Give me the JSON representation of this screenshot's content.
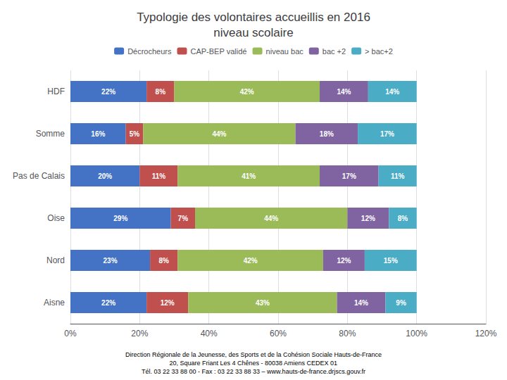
{
  "chart_data": {
    "type": "bar",
    "orientation": "horizontal",
    "stacked": true,
    "title": "Typologie des volontaires accueillis en 2016\nniveau scolaire",
    "categories": [
      "HDF",
      "Somme",
      "Pas de Calais",
      "Oise",
      "Nord",
      "Aisne"
    ],
    "series": [
      {
        "name": "Décrocheurs",
        "color": "#4472C4",
        "values": [
          22,
          16,
          20,
          29,
          23,
          22
        ],
        "value_labels": [
          "22%",
          "16%",
          "20%",
          "29%",
          "23%",
          "22%"
        ]
      },
      {
        "name": "CAP-BEP validé",
        "color": "#C0504D",
        "values": [
          8,
          5,
          11,
          7,
          8,
          12
        ],
        "value_labels": [
          "8%",
          "5%",
          "11%",
          "7%",
          "8%",
          "12%"
        ]
      },
      {
        "name": "niveau bac",
        "color": "#9BBB59",
        "values": [
          42,
          44,
          41,
          44,
          42,
          43
        ],
        "value_labels": [
          "42%",
          "44%",
          "41%",
          "44%",
          "42%",
          "43%"
        ]
      },
      {
        "name": "bac +2",
        "color": "#8064A2",
        "values": [
          14,
          18,
          17,
          12,
          12,
          14
        ],
        "value_labels": [
          "14%",
          "18%",
          "17%",
          "12%",
          "12%",
          "14%"
        ]
      },
      {
        "name": "> bac+2",
        "color": "#4BACC6",
        "values": [
          14,
          17,
          11,
          8,
          15,
          9
        ],
        "value_labels": [
          "14%",
          "17%",
          "11%",
          "8%",
          "15%",
          "9%"
        ]
      }
    ],
    "xlim": [
      0,
      120
    ],
    "xticks": [
      {
        "value": 0,
        "label": "0%"
      },
      {
        "value": 20,
        "label": "20%"
      },
      {
        "value": 40,
        "label": "40%"
      },
      {
        "value": 60,
        "label": "60%"
      },
      {
        "value": 80,
        "label": "80%"
      },
      {
        "value": 100,
        "label": "100%"
      },
      {
        "value": 120,
        "label": "120%"
      }
    ],
    "data_labels": true,
    "grid": true,
    "legend": "top",
    "annotations": [
      "Direction Régionale de la Jeunesse, des Sports et de la Cohésion Sociale Hauts-de-France",
      "20, Square Friant Les 4 Chênes - 80038 Amiens CEDEX 01",
      "Tél. 03 22 33 88 00 - Fax : 03 22 33 88 33 – www.hauts-de-france.drjscs.gouv.fr"
    ]
  }
}
